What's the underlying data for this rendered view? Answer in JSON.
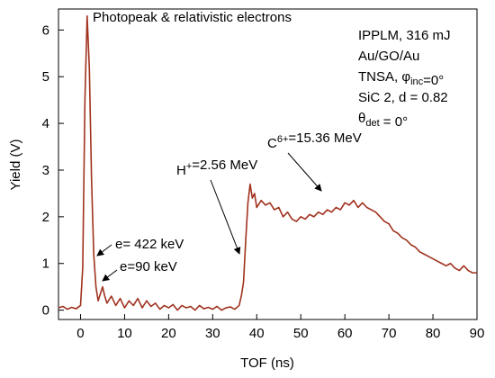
{
  "chart_data": {
    "type": "line",
    "xlabel": "TOF (ns)",
    "ylabel": "Yield (V)",
    "xlim": [
      -5,
      90
    ],
    "ylim": [
      -0.2,
      6.45
    ],
    "xticks": [
      0,
      10,
      20,
      30,
      40,
      50,
      60,
      70,
      80,
      90
    ],
    "yticks": [
      0,
      1,
      2,
      3,
      4,
      5,
      6
    ],
    "series": [
      {
        "color": "#a0321e",
        "x": [
          -5,
          -4,
          -3,
          -2,
          -1,
          0,
          0.5,
          1,
          1.5,
          2,
          2.5,
          3,
          3.5,
          4,
          4.5,
          5,
          5.5,
          6,
          7,
          8,
          9,
          10,
          11,
          12,
          13,
          14,
          15,
          16,
          17,
          18,
          19,
          20,
          21,
          22,
          23,
          24,
          25,
          26,
          27,
          28,
          29,
          30,
          31,
          32,
          33,
          34,
          35,
          36,
          36.5,
          37,
          37.5,
          38,
          38.5,
          39,
          39.5,
          40,
          41,
          42,
          43,
          44,
          45,
          46,
          47,
          48,
          49,
          50,
          51,
          52,
          53,
          54,
          55,
          56,
          57,
          58,
          59,
          60,
          61,
          62,
          63,
          64,
          65,
          66,
          67,
          68,
          69,
          70,
          71,
          72,
          73,
          74,
          75,
          76,
          77,
          78,
          79,
          80,
          81,
          82,
          83,
          84,
          85,
          86,
          87,
          88,
          89,
          90
        ],
        "values": [
          0.05,
          0.08,
          0.02,
          0.06,
          0.03,
          0.1,
          0.9,
          4.5,
          6.3,
          5.2,
          2.8,
          1.2,
          0.5,
          0.2,
          0.35,
          0.5,
          0.3,
          0.15,
          0.3,
          0.1,
          0.25,
          0.05,
          0.2,
          0.1,
          0.25,
          0.05,
          0.2,
          0.08,
          0.15,
          0.02,
          0.1,
          0.05,
          0.12,
          0.0,
          0.1,
          0.05,
          0.08,
          0.0,
          0.1,
          0.03,
          0.06,
          0.02,
          0.08,
          0.0,
          0.05,
          0.07,
          0.02,
          0.1,
          0.3,
          0.6,
          1.5,
          2.3,
          2.7,
          2.4,
          2.5,
          2.2,
          2.35,
          2.25,
          2.3,
          2.15,
          2.2,
          2.0,
          2.1,
          1.95,
          1.9,
          2.0,
          1.95,
          2.05,
          2.0,
          2.1,
          2.05,
          2.15,
          2.1,
          2.2,
          2.15,
          2.3,
          2.25,
          2.35,
          2.2,
          2.3,
          2.2,
          2.15,
          2.1,
          2.0,
          1.9,
          1.85,
          1.7,
          1.65,
          1.55,
          1.5,
          1.4,
          1.35,
          1.25,
          1.2,
          1.15,
          1.1,
          1.05,
          1.0,
          0.95,
          1.0,
          0.9,
          0.85,
          0.95,
          0.85,
          0.8,
          0.8
        ]
      }
    ],
    "annotations": [
      [
        {
          "t": "Photopeak & relativistic electrons"
        }
      ],
      [
        {
          "t": "IPPLM, 316 mJ"
        }
      ],
      [
        {
          "t": "Au/GO/Au"
        }
      ],
      [
        {
          "t": "TNSA, φ"
        },
        {
          "sub": "inc"
        },
        {
          "t": "=0°"
        }
      ],
      [
        {
          "t": "SiC 2, d = 0.82"
        }
      ],
      [
        {
          "t": "θ"
        },
        {
          "sub": "det"
        },
        {
          "t": " = 0°"
        }
      ],
      [
        {
          "t": "C"
        },
        {
          "sup": "6+"
        },
        {
          "t": "=15.36 MeV"
        }
      ],
      [
        {
          "t": "H"
        },
        {
          "sup": "+"
        },
        {
          "t": "=2.56 MeV"
        }
      ],
      [
        {
          "t": "e= 422 keV"
        }
      ],
      [
        {
          "t": "e=90 keV"
        }
      ]
    ]
  }
}
